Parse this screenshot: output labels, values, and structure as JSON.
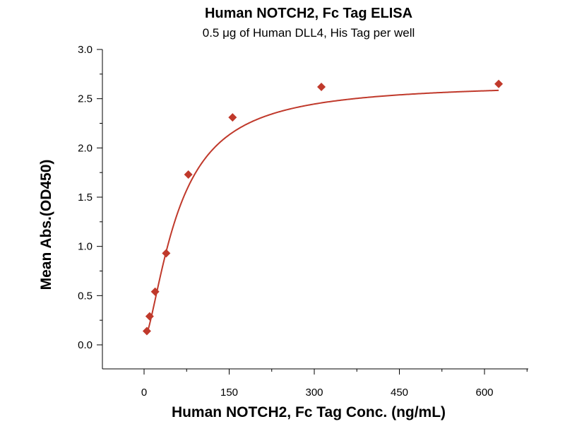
{
  "chart_data": {
    "type": "scatter",
    "title": "Human NOTCH2, Fc Tag ELISA",
    "subtitle": "0.5 μg of Human DLL4, His Tag per well",
    "xlabel": "Human NOTCH2, Fc Tag Conc. (ng/mL)",
    "ylabel": "Mean Abs.(OD450)",
    "xlim": [
      -60,
      680
    ],
    "ylim": [
      -0.25,
      3.0
    ],
    "xticks": [
      0,
      150,
      300,
      450,
      600
    ],
    "xtick_labels": [
      "0",
      "150",
      "300",
      "450",
      "600"
    ],
    "yticks": [
      0.0,
      0.5,
      1.0,
      1.5,
      2.0,
      2.5,
      3.0
    ],
    "ytick_labels": [
      "0.0",
      "0.5",
      "1.0",
      "1.5",
      "2.0",
      "2.5",
      "3.0"
    ],
    "grid": false,
    "series": [
      {
        "marker": "diamond",
        "color": "#c0392b",
        "x": [
          4.9,
          9.8,
          19.5,
          39,
          78,
          156,
          312.5,
          625
        ],
        "y": [
          0.14,
          0.29,
          0.54,
          0.93,
          1.73,
          2.31,
          2.62,
          2.65
        ]
      }
    ],
    "fit_curve": {
      "color": "#c0392b",
      "model": "4PL",
      "bottom": 0.05,
      "top": 2.66,
      "ec50": 60,
      "hill": 1.5
    }
  }
}
